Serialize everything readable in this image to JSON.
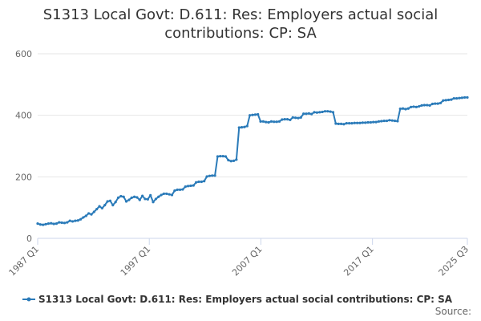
{
  "chart_data": {
    "type": "line",
    "title_lines": [
      "S1313 Local Govt: D.611: Res: Employers actual social",
      "contributions: CP: SA"
    ],
    "x_tick_labels": [
      "1987 Q1",
      "1997 Q1",
      "2007 Q1",
      "2017 Q1",
      "2025 Q3"
    ],
    "y_tick_labels": [
      "0",
      "200",
      "400",
      "600"
    ],
    "ylim": [
      0,
      600
    ],
    "x_start": "1987 Q1",
    "x_end": "2025 Q3",
    "grid": true,
    "legend_position": "bottom",
    "series": [
      {
        "name": "S1313 Local Govt: D.611: Res: Employers actual social contributions: CP: SA",
        "color": "#2b7bb9",
        "values": [
          48,
          45,
          44,
          46,
          48,
          49,
          47,
          48,
          52,
          51,
          50,
          52,
          57,
          55,
          57,
          58,
          62,
          68,
          73,
          81,
          78,
          86,
          95,
          104,
          98,
          108,
          120,
          122,
          108,
          118,
          132,
          137,
          135,
          120,
          125,
          132,
          135,
          133,
          125,
          138,
          128,
          127,
          140,
          118,
          128,
          135,
          141,
          145,
          145,
          143,
          141,
          155,
          158,
          158,
          159,
          168,
          170,
          171,
          172,
          182,
          184,
          184,
          186,
          201,
          203,
          204,
          204,
          266,
          267,
          267,
          266,
          254,
          251,
          252,
          256,
          360,
          361,
          362,
          365,
          400,
          401,
          402,
          403,
          380,
          380,
          378,
          377,
          380,
          379,
          379,
          380,
          386,
          387,
          387,
          385,
          393,
          392,
          391,
          393,
          405,
          405,
          406,
          404,
          410,
          409,
          410,
          411,
          413,
          413,
          412,
          410,
          373,
          372,
          372,
          371,
          374,
          374,
          374,
          375,
          375,
          375,
          376,
          376,
          377,
          377,
          378,
          378,
          380,
          381,
          382,
          382,
          384,
          383,
          382,
          381,
          421,
          422,
          420,
          422,
          427,
          428,
          427,
          429,
          432,
          433,
          433,
          432,
          437,
          438,
          438,
          440,
          448,
          449,
          450,
          451,
          455,
          455,
          456,
          457,
          458,
          458
        ]
      }
    ],
    "source_label": "Source:"
  }
}
